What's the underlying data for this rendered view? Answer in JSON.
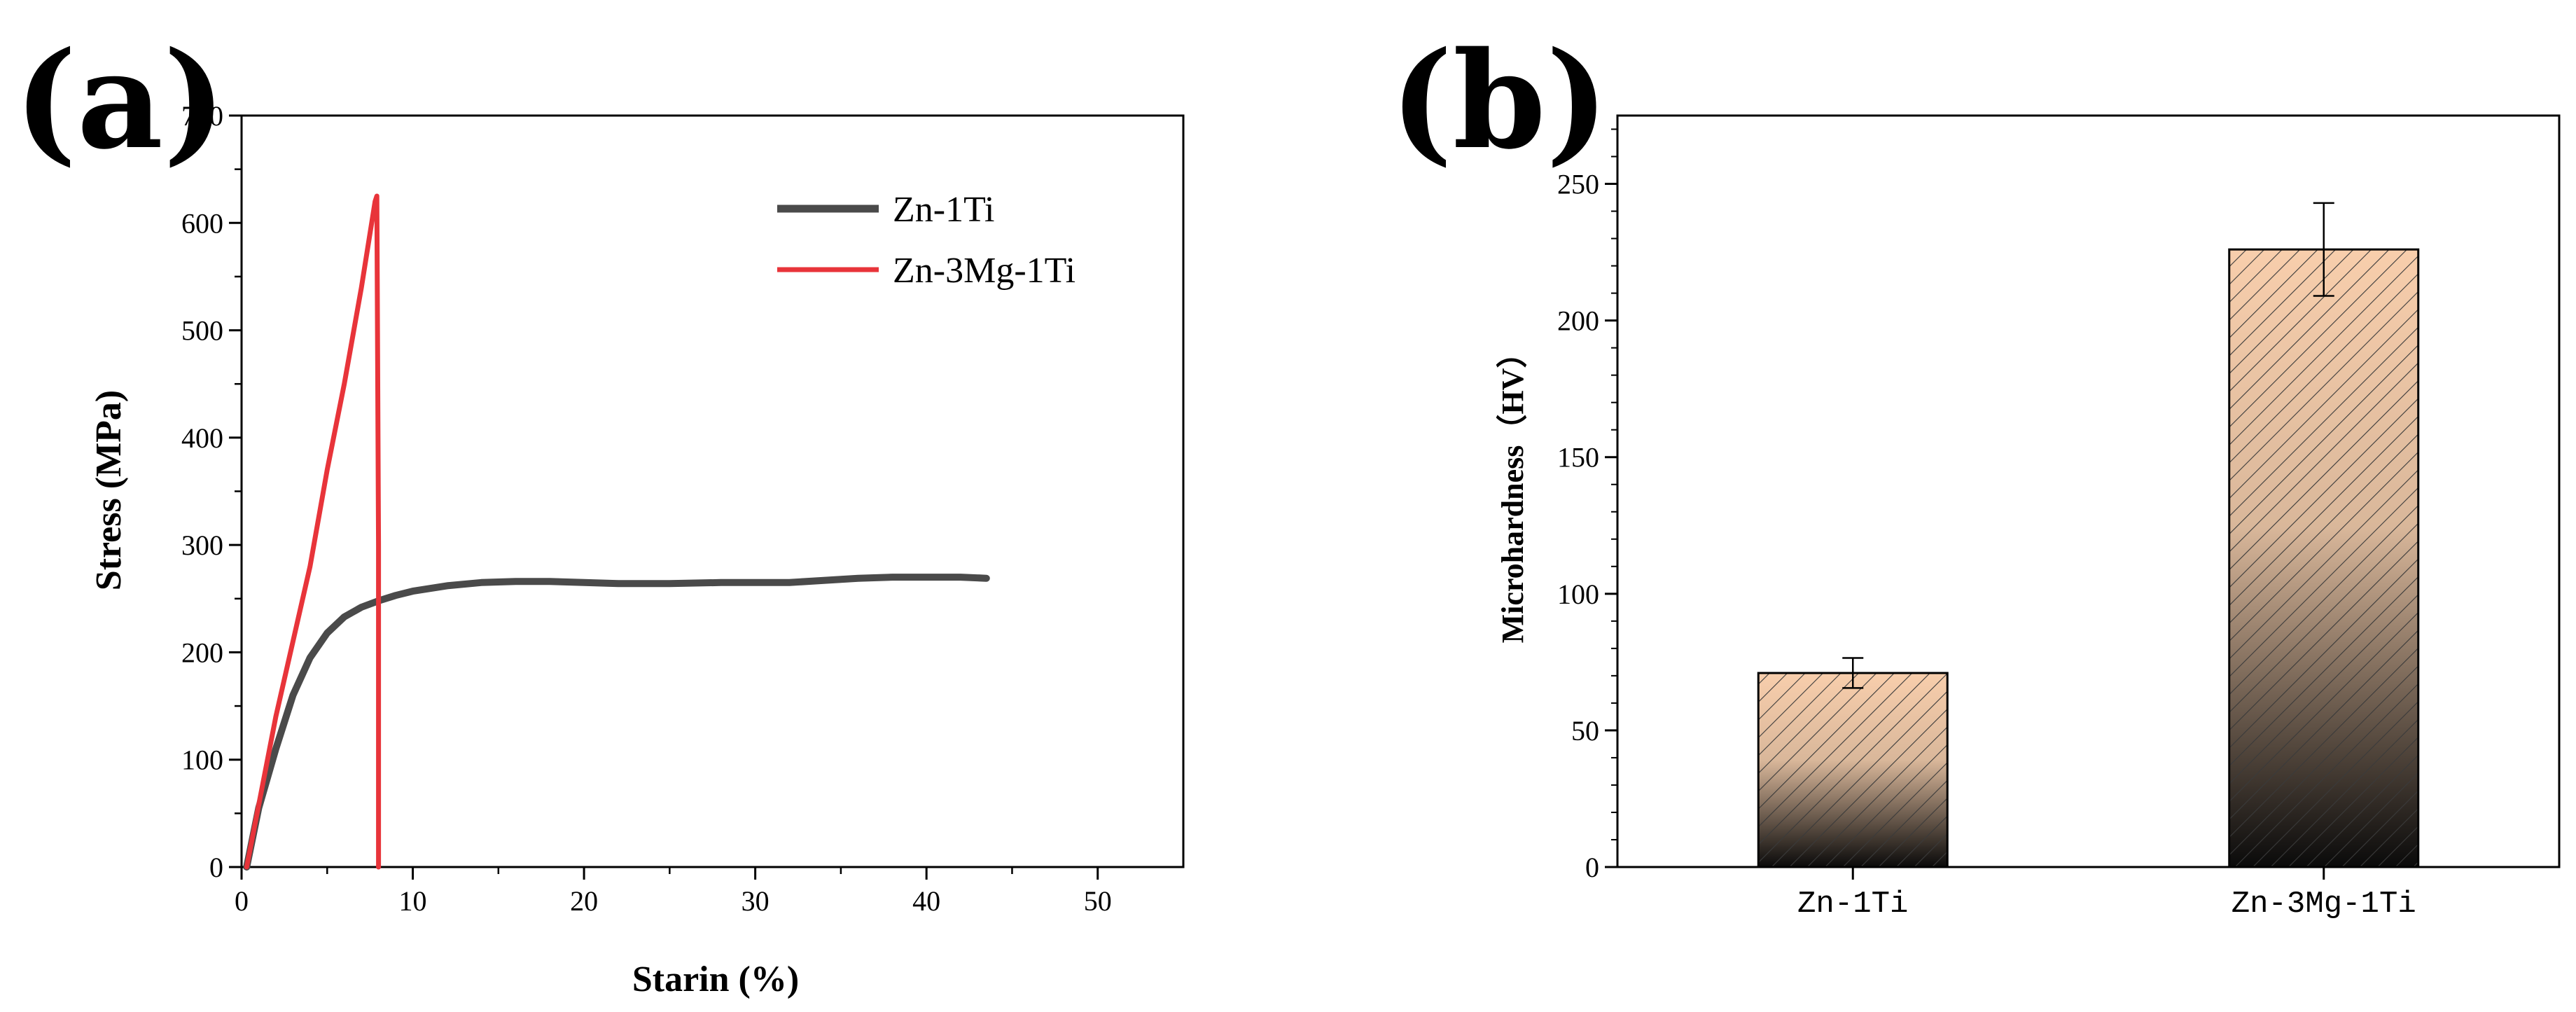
{
  "panels": {
    "a_label": "(a)",
    "b_label": "(b)"
  },
  "colors": {
    "zn1ti_line": "#4a4a4a",
    "zn3mg1ti_line": "#e8343a",
    "bar_top": "#f8ceac",
    "bar_bottom": "#0a0a0a"
  },
  "chart_data": [
    {
      "type": "line",
      "xlabel": "Starin (%)",
      "ylabel": "Stress (MPa)",
      "xlim": [
        0,
        55
      ],
      "ylim": [
        0,
        700
      ],
      "xticks": [
        0,
        10,
        20,
        30,
        40,
        50
      ],
      "yticks": [
        0,
        100,
        200,
        300,
        400,
        500,
        600,
        700
      ],
      "legend_position": "top-right",
      "series": [
        {
          "name": "Zn-1Ti",
          "color": "#4a4a4a",
          "x": [
            0.3,
            1,
            2,
            3,
            4,
            5,
            6,
            7,
            8,
            9,
            10,
            12,
            14,
            16,
            18,
            20,
            22,
            25,
            28,
            30,
            32,
            34,
            36,
            38,
            40,
            42,
            43.5
          ],
          "y": [
            0,
            55,
            110,
            160,
            195,
            218,
            233,
            242,
            248,
            253,
            257,
            262,
            265,
            266,
            266,
            265,
            264,
            264,
            265,
            265,
            265,
            267,
            269,
            270,
            270,
            270,
            269
          ]
        },
        {
          "name": "Zn-3Mg-1Ti",
          "color": "#e8343a",
          "x": [
            0.3,
            2,
            4,
            5,
            6,
            7,
            7.8,
            7.9,
            8.0,
            8.0
          ],
          "y": [
            0,
            140,
            280,
            370,
            450,
            540,
            620,
            625,
            300,
            0
          ]
        }
      ]
    },
    {
      "type": "bar",
      "xlabel": "",
      "ylabel": "Microhardness（HV）",
      "ylim": [
        0,
        275
      ],
      "yticks": [
        0,
        50,
        100,
        150,
        200,
        250
      ],
      "categories": [
        "Zn-1Ti",
        "Zn-3Mg-1Ti"
      ],
      "values": [
        71,
        226
      ],
      "errors": [
        5.5,
        17
      ]
    }
  ]
}
